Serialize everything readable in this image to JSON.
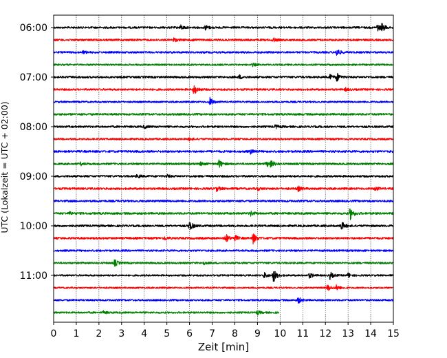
{
  "chart_data": {
    "type": "line",
    "title": "",
    "xlabel": "Zeit  [min]",
    "ylabel": "UTC (Lokalzeit = UTC + 02:00)",
    "xlim": [
      0,
      15
    ],
    "x_ticks": [
      "0",
      "1",
      "2",
      "3",
      "4",
      "5",
      "6",
      "7",
      "8",
      "9",
      "10",
      "11",
      "12",
      "13",
      "14",
      "15"
    ],
    "y_ticks": [
      "06:00",
      "07:00",
      "08:00",
      "09:00",
      "10:00",
      "11:00"
    ],
    "grid_x": true,
    "grid_y": false,
    "row_start": "06:00",
    "row_interval_min": 15,
    "row_count": 24,
    "last_row_end_min": 9.95,
    "colors": [
      "#000000",
      "#ff0000",
      "#0000ff",
      "#008000"
    ],
    "rows": [
      {
        "time": "06:00",
        "color": "#000000",
        "events": [
          {
            "t": 5.6,
            "a": 0.5
          },
          {
            "t": 6.7,
            "a": 0.5
          },
          {
            "t": 14.3,
            "a": 0.7
          },
          {
            "t": 14.5,
            "a": 0.8
          }
        ]
      },
      {
        "time": "06:15",
        "color": "#ff0000",
        "events": [
          {
            "t": 5.3,
            "a": 0.4
          },
          {
            "t": 6.1,
            "a": 0.3
          },
          {
            "t": 9.7,
            "a": 0.4
          }
        ]
      },
      {
        "time": "06:30",
        "color": "#0000ff",
        "events": [
          {
            "t": 1.3,
            "a": 0.3
          },
          {
            "t": 12.5,
            "a": 0.9
          }
        ]
      },
      {
        "time": "06:45",
        "color": "#008000",
        "events": [
          {
            "t": 8.8,
            "a": 0.3
          }
        ]
      },
      {
        "time": "07:00",
        "color": "#000000",
        "events": [
          {
            "t": 8.2,
            "a": 0.4
          },
          {
            "t": 12.2,
            "a": 0.5
          },
          {
            "t": 12.5,
            "a": 0.9
          }
        ]
      },
      {
        "time": "07:15",
        "color": "#ff0000",
        "events": [
          {
            "t": 6.2,
            "a": 1.2
          },
          {
            "t": 12.9,
            "a": 0.3
          }
        ]
      },
      {
        "time": "07:30",
        "color": "#0000ff",
        "events": [
          {
            "t": 6.9,
            "a": 0.9
          }
        ]
      },
      {
        "time": "07:45",
        "color": "#008000",
        "events": []
      },
      {
        "time": "08:00",
        "color": "#000000",
        "events": [
          {
            "t": 4.0,
            "a": 0.3
          },
          {
            "t": 9.8,
            "a": 0.4
          }
        ]
      },
      {
        "time": "08:15",
        "color": "#ff0000",
        "events": [
          {
            "t": 6.0,
            "a": 0.3
          }
        ]
      },
      {
        "time": "08:30",
        "color": "#0000ff",
        "events": [
          {
            "t": 8.7,
            "a": 0.4
          }
        ]
      },
      {
        "time": "08:45",
        "color": "#008000",
        "events": [
          {
            "t": 1.2,
            "a": 0.3
          },
          {
            "t": 6.5,
            "a": 0.4
          },
          {
            "t": 7.3,
            "a": 0.9
          },
          {
            "t": 9.4,
            "a": 0.6
          },
          {
            "t": 9.6,
            "a": 0.7
          }
        ]
      },
      {
        "time": "09:00",
        "color": "#000000",
        "events": [
          {
            "t": 3.7,
            "a": 0.4
          },
          {
            "t": 5.0,
            "a": 0.3
          }
        ]
      },
      {
        "time": "09:15",
        "color": "#ff0000",
        "events": [
          {
            "t": 7.2,
            "a": 0.5
          },
          {
            "t": 9.0,
            "a": 0.3
          },
          {
            "t": 10.8,
            "a": 0.5
          },
          {
            "t": 14.2,
            "a": 0.4
          }
        ]
      },
      {
        "time": "09:30",
        "color": "#0000ff",
        "events": []
      },
      {
        "time": "09:45",
        "color": "#008000",
        "events": [
          {
            "t": 0.7,
            "a": 0.3
          },
          {
            "t": 8.7,
            "a": 0.5
          },
          {
            "t": 13.1,
            "a": 1.3
          }
        ]
      },
      {
        "time": "10:00",
        "color": "#000000",
        "events": [
          {
            "t": 6.0,
            "a": 1.1
          },
          {
            "t": 12.7,
            "a": 1.0
          }
        ]
      },
      {
        "time": "10:15",
        "color": "#ff0000",
        "events": [
          {
            "t": 4.9,
            "a": 0.4
          },
          {
            "t": 7.6,
            "a": 0.9
          },
          {
            "t": 8.0,
            "a": 0.6
          },
          {
            "t": 8.8,
            "a": 1.2
          }
        ]
      },
      {
        "time": "10:30",
        "color": "#0000ff",
        "events": []
      },
      {
        "time": "10:45",
        "color": "#008000",
        "events": [
          {
            "t": 2.7,
            "a": 0.7
          },
          {
            "t": 6.6,
            "a": 0.3
          }
        ]
      },
      {
        "time": "11:00",
        "color": "#000000",
        "events": [
          {
            "t": 9.3,
            "a": 0.6
          },
          {
            "t": 9.7,
            "a": 1.6
          },
          {
            "t": 11.3,
            "a": 0.6
          },
          {
            "t": 12.2,
            "a": 0.8
          },
          {
            "t": 13.0,
            "a": 0.5
          }
        ]
      },
      {
        "time": "11:15",
        "color": "#ff0000",
        "events": [
          {
            "t": 12.1,
            "a": 0.7
          },
          {
            "t": 12.5,
            "a": 0.6
          }
        ]
      },
      {
        "time": "11:30",
        "color": "#0000ff",
        "events": [
          {
            "t": 10.8,
            "a": 0.7
          }
        ]
      },
      {
        "time": "11:45",
        "color": "#008000",
        "events": [
          {
            "t": 2.2,
            "a": 0.3
          },
          {
            "t": 9.0,
            "a": 0.4
          }
        ]
      }
    ]
  }
}
